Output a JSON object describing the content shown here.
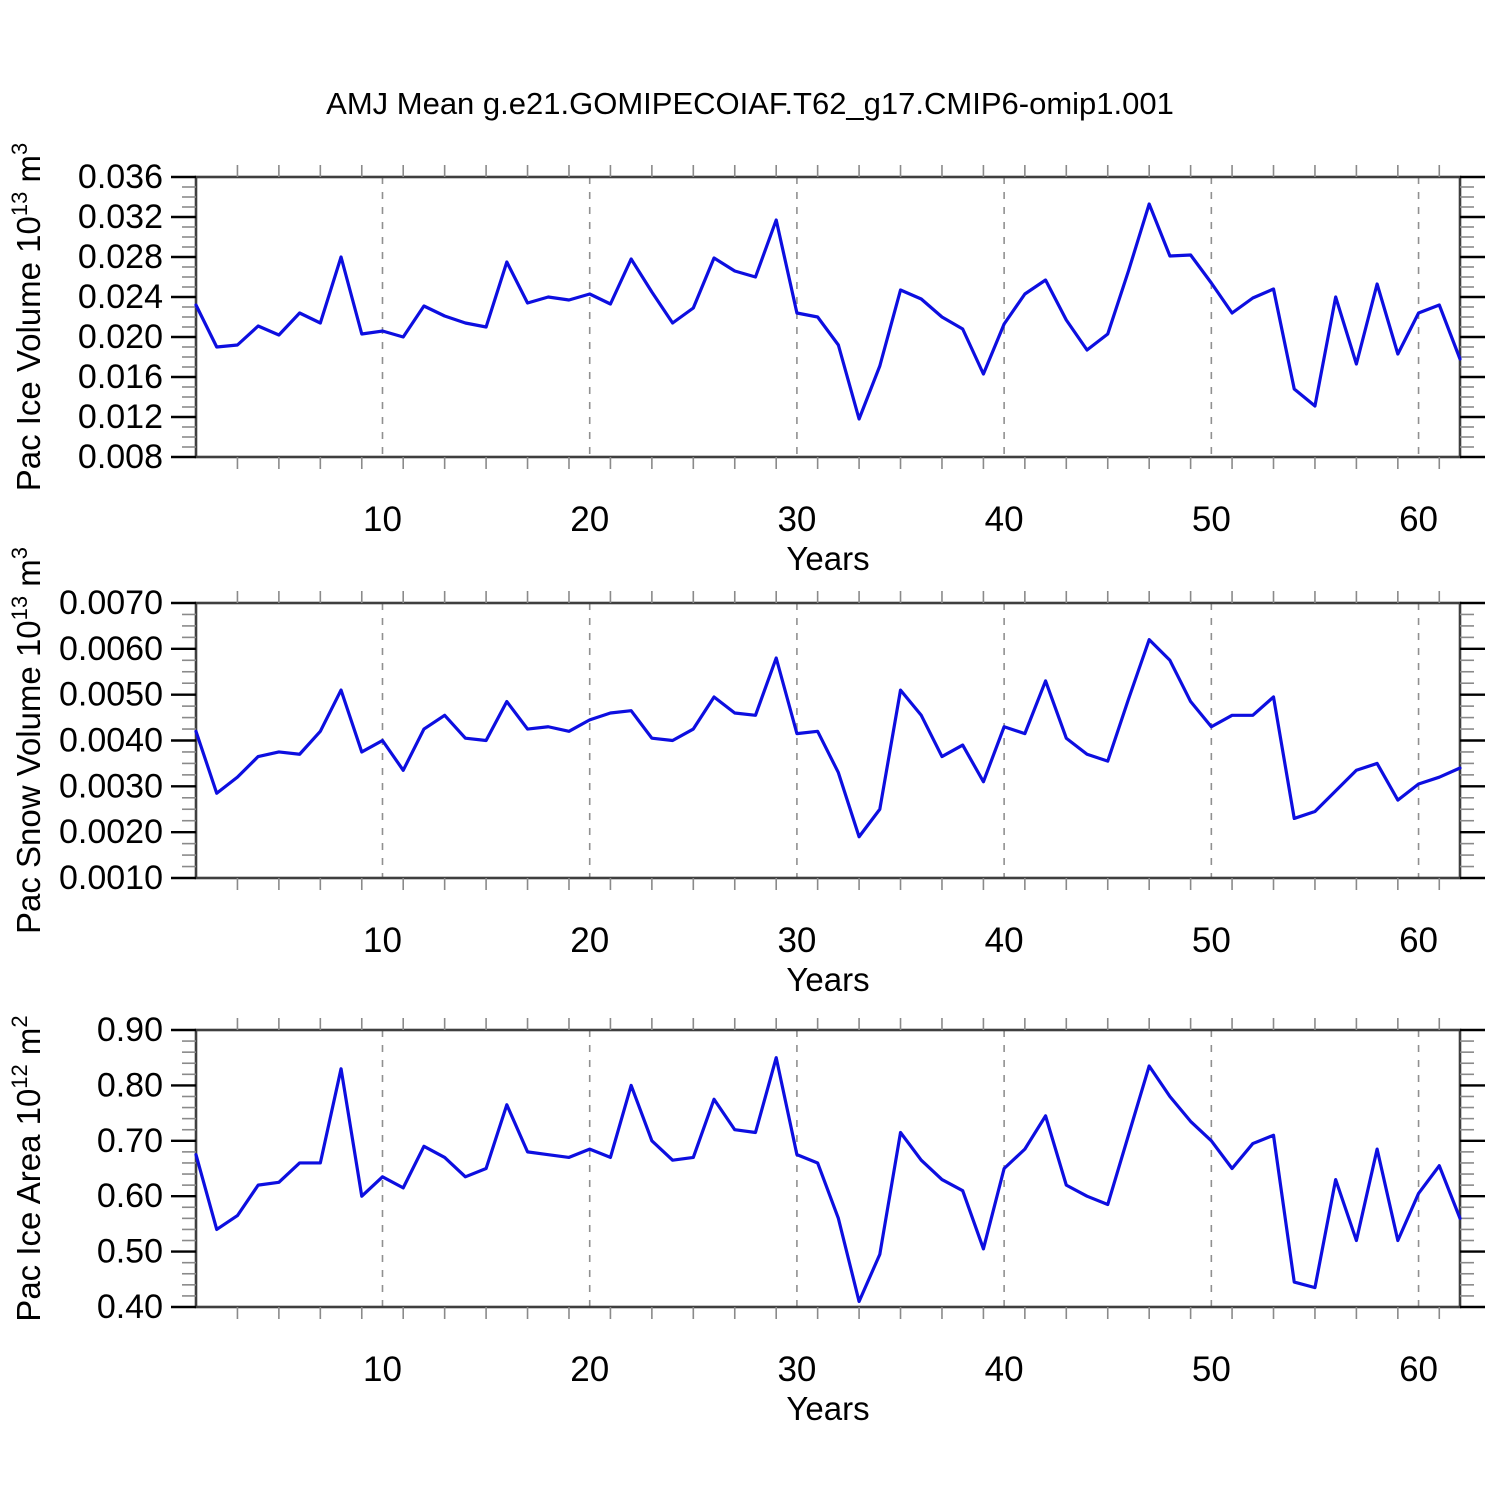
{
  "title": "AMJ Mean g.e21.GOMIPECOIAF.T62_g17.CMIP6-omip1.001",
  "colors": {
    "background": "#ffffff",
    "line": "#0d0ee0",
    "frame": "#3f3f3f",
    "major_tick": "#000000",
    "minor_tick": "#8a8a8a",
    "grid": "#909090",
    "text": "#000000"
  },
  "chart_data": [
    {
      "type": "line",
      "id": "pac-ice-volume",
      "ylabel_parts": [
        {
          "text": "Pac Ice Volume 10",
          "sup": false
        },
        {
          "text": "13",
          "sup": true
        },
        {
          "text": " m",
          "sup": false
        },
        {
          "text": "3",
          "sup": true
        }
      ],
      "xlabel": "Years",
      "x_start": 1,
      "x_end": 62,
      "xticks": [
        10,
        20,
        30,
        40,
        50,
        60
      ],
      "xtick_labels": [
        "10",
        "20",
        "30",
        "40",
        "50",
        "60"
      ],
      "x_minor_step": 2,
      "ylim": [
        0.008,
        0.036
      ],
      "yticks": [
        0.008,
        0.012,
        0.016,
        0.02,
        0.024,
        0.028,
        0.032,
        0.036
      ],
      "ytick_labels": [
        "0.008",
        "0.012",
        "0.016",
        "0.020",
        "0.024",
        "0.028",
        "0.032",
        "0.036"
      ],
      "y_minor_step": 0.001,
      "grid_at_xticks": true,
      "values": [
        0.0232,
        0.019,
        0.0192,
        0.0211,
        0.0202,
        0.0224,
        0.0214,
        0.028,
        0.0203,
        0.0206,
        0.02,
        0.0231,
        0.0221,
        0.0214,
        0.021,
        0.0275,
        0.0234,
        0.024,
        0.0237,
        0.0243,
        0.0233,
        0.0278,
        0.0245,
        0.0214,
        0.0229,
        0.0279,
        0.0266,
        0.026,
        0.0317,
        0.0224,
        0.022,
        0.0192,
        0.0118,
        0.0171,
        0.0247,
        0.0238,
        0.022,
        0.0208,
        0.0163,
        0.0213,
        0.0243,
        0.0257,
        0.0217,
        0.0187,
        0.0203,
        0.0266,
        0.0333,
        0.0281,
        0.0282,
        0.0254,
        0.0224,
        0.0239,
        0.0248,
        0.0148,
        0.0131,
        0.024,
        0.0173,
        0.0253,
        0.0183,
        0.0224,
        0.0232,
        0.0178
      ]
    },
    {
      "type": "line",
      "id": "pac-snow-volume",
      "ylabel_parts": [
        {
          "text": "Pac Snow Volume 10",
          "sup": false
        },
        {
          "text": "13",
          "sup": true
        },
        {
          "text": " m",
          "sup": false
        },
        {
          "text": "3",
          "sup": true
        }
      ],
      "xlabel": "Years",
      "x_start": 1,
      "x_end": 62,
      "xticks": [
        10,
        20,
        30,
        40,
        50,
        60
      ],
      "xtick_labels": [
        "10",
        "20",
        "30",
        "40",
        "50",
        "60"
      ],
      "x_minor_step": 2,
      "ylim": [
        0.001,
        0.007
      ],
      "yticks": [
        0.001,
        0.002,
        0.003,
        0.004,
        0.005,
        0.006,
        0.007
      ],
      "ytick_labels": [
        "0.0010",
        "0.0020",
        "0.0030",
        "0.0040",
        "0.0050",
        "0.0060",
        "0.0070"
      ],
      "y_minor_step": 0.00025,
      "grid_at_xticks": true,
      "values": [
        0.0042,
        0.00285,
        0.0032,
        0.00365,
        0.00375,
        0.0037,
        0.0042,
        0.0051,
        0.00375,
        0.004,
        0.00335,
        0.00425,
        0.00455,
        0.00405,
        0.004,
        0.00485,
        0.00425,
        0.0043,
        0.0042,
        0.00445,
        0.0046,
        0.00465,
        0.00405,
        0.004,
        0.00425,
        0.00495,
        0.0046,
        0.00455,
        0.0058,
        0.00415,
        0.0042,
        0.0033,
        0.0019,
        0.0025,
        0.0051,
        0.00455,
        0.00365,
        0.0039,
        0.0031,
        0.0043,
        0.00415,
        0.0053,
        0.00405,
        0.0037,
        0.00355,
        0.0049,
        0.0062,
        0.00575,
        0.00485,
        0.0043,
        0.00455,
        0.00455,
        0.00495,
        0.0023,
        0.00245,
        0.0029,
        0.00335,
        0.0035,
        0.0027,
        0.00305,
        0.0032,
        0.0034
      ]
    },
    {
      "type": "line",
      "id": "pac-ice-area",
      "ylabel_parts": [
        {
          "text": "Pac Ice Area 10",
          "sup": false
        },
        {
          "text": "12",
          "sup": true
        },
        {
          "text": " m",
          "sup": false
        },
        {
          "text": "2",
          "sup": true
        }
      ],
      "xlabel": "Years",
      "x_start": 1,
      "x_end": 62,
      "xticks": [
        10,
        20,
        30,
        40,
        50,
        60
      ],
      "xtick_labels": [
        "10",
        "20",
        "30",
        "40",
        "50",
        "60"
      ],
      "x_minor_step": 2,
      "ylim": [
        0.4,
        0.9
      ],
      "yticks": [
        0.4,
        0.5,
        0.6,
        0.7,
        0.8,
        0.9
      ],
      "ytick_labels": [
        "0.40",
        "0.50",
        "0.60",
        "0.70",
        "0.80",
        "0.90"
      ],
      "y_minor_step": 0.02,
      "grid_at_xticks": true,
      "values": [
        0.675,
        0.54,
        0.565,
        0.62,
        0.625,
        0.66,
        0.66,
        0.83,
        0.6,
        0.635,
        0.615,
        0.69,
        0.67,
        0.635,
        0.65,
        0.765,
        0.68,
        0.675,
        0.67,
        0.685,
        0.67,
        0.8,
        0.7,
        0.665,
        0.67,
        0.775,
        0.72,
        0.715,
        0.85,
        0.675,
        0.66,
        0.56,
        0.41,
        0.495,
        0.715,
        0.665,
        0.63,
        0.61,
        0.505,
        0.65,
        0.685,
        0.745,
        0.62,
        0.6,
        0.585,
        0.71,
        0.835,
        0.78,
        0.735,
        0.7,
        0.65,
        0.695,
        0.71,
        0.445,
        0.435,
        0.63,
        0.52,
        0.685,
        0.52,
        0.605,
        0.655,
        0.56
      ]
    }
  ]
}
